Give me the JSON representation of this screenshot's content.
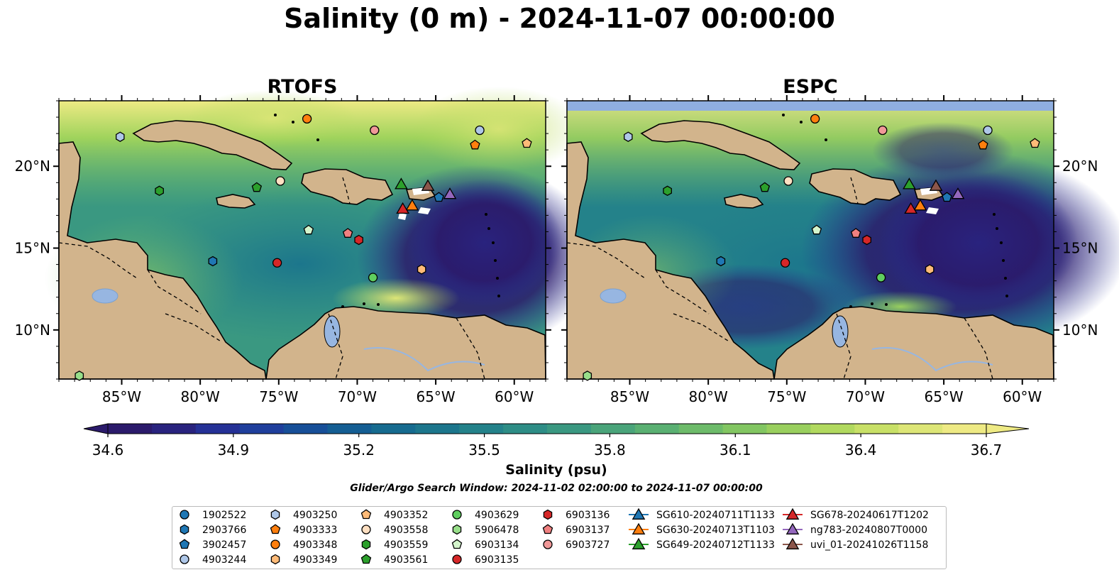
{
  "figure": {
    "title": "Salinity (0 m) - 2024-11-07 00:00:00",
    "search_window": "Glider/Argo Search Window: 2024-11-02 02:00:00 to 2024-11-07 00:00:00"
  },
  "chart_data": [
    {
      "type": "heatmap",
      "title": "RTOFS",
      "variable": "Salinity (0 m)",
      "x_ticks": [
        "85°W",
        "80°W",
        "75°W",
        "70°W",
        "65°W",
        "60°W"
      ],
      "y_ticks": [
        "20°N",
        "15°N",
        "10°N"
      ],
      "xlim": [
        -89,
        -58
      ],
      "ylim": [
        7,
        24
      ],
      "no_data_band": false
    },
    {
      "type": "heatmap",
      "title": "ESPC",
      "variable": "Salinity (0 m)",
      "x_ticks": [
        "85°W",
        "80°W",
        "75°W",
        "70°W",
        "65°W",
        "60°W"
      ],
      "y_ticks": [
        "20°N",
        "15°N",
        "10°N"
      ],
      "xlim": [
        -89,
        -58
      ],
      "ylim": [
        7,
        24
      ],
      "no_data_band": true
    }
  ],
  "colorbar": {
    "label": "Salinity (psu)",
    "min": 34.6,
    "max": 36.7,
    "ticks": [
      "34.6",
      "34.9",
      "35.2",
      "35.5",
      "35.8",
      "36.1",
      "36.4",
      "36.7"
    ],
    "colors": [
      "#2b1a6b",
      "#29237e",
      "#253196",
      "#1f3f9c",
      "#174f98",
      "#145e93",
      "#166b8f",
      "#1c768c",
      "#24828a",
      "#2e8d86",
      "#3a9881",
      "#4aa47a",
      "#5ab072",
      "#6dbb6a",
      "#82c662",
      "#99cf5e",
      "#b1d95f",
      "#c8e067",
      "#dde677",
      "#eeea84"
    ]
  },
  "colors": {
    "land": "#d2b48c",
    "lakes": "#97b6e1",
    "no_data": "#8faee0"
  },
  "platforms": [
    {
      "id": "1902522",
      "marker": "circle",
      "color": "#1f77b4",
      "lon": null,
      "lat": null
    },
    {
      "id": "2903766",
      "marker": "hexagon",
      "color": "#1f77b4",
      "lon": -79.2,
      "lat": 14.2
    },
    {
      "id": "3902457",
      "marker": "pentagon",
      "color": "#1f77b4",
      "lon": -64.8,
      "lat": 18.1
    },
    {
      "id": "4903244",
      "marker": "circle",
      "color": "#aec7e8",
      "lon": -62.2,
      "lat": 22.2
    },
    {
      "id": "4903250",
      "marker": "hexagon",
      "color": "#aec7e8",
      "lon": -85.1,
      "lat": 21.8
    },
    {
      "id": "4903333",
      "marker": "pentagon",
      "color": "#ff7f0e",
      "lon": -62.5,
      "lat": 21.3
    },
    {
      "id": "4903348",
      "marker": "circle",
      "color": "#ff7f0e",
      "lon": -73.2,
      "lat": 22.9
    },
    {
      "id": "4903349",
      "marker": "hexagon",
      "color": "#ffbb78",
      "lon": -65.9,
      "lat": 13.7
    },
    {
      "id": "4903352",
      "marker": "pentagon",
      "color": "#ffbb78",
      "lon": -59.2,
      "lat": 21.4
    },
    {
      "id": "4903558",
      "marker": "circle",
      "color": "#ffe0c2",
      "lon": -74.9,
      "lat": 19.1
    },
    {
      "id": "4903559",
      "marker": "hexagon",
      "color": "#2ca02c",
      "lon": -82.6,
      "lat": 18.5
    },
    {
      "id": "4903561",
      "marker": "pentagon",
      "color": "#2ca02c",
      "lon": -76.4,
      "lat": 18.7
    },
    {
      "id": "4903629",
      "marker": "circle",
      "color": "#5fce5f",
      "lon": -69.0,
      "lat": 13.2
    },
    {
      "id": "5906478",
      "marker": "hexagon",
      "color": "#98df8a",
      "lon": -87.7,
      "lat": 7.2
    },
    {
      "id": "6903134",
      "marker": "pentagon",
      "color": "#d4f5cc",
      "lon": -73.1,
      "lat": 16.1
    },
    {
      "id": "6903135",
      "marker": "circle",
      "color": "#d62728",
      "lon": -75.1,
      "lat": 14.1
    },
    {
      "id": "6903136",
      "marker": "hexagon",
      "color": "#d62728",
      "lon": -69.9,
      "lat": 15.5
    },
    {
      "id": "6903137",
      "marker": "pentagon",
      "color": "#f08080",
      "lon": -70.6,
      "lat": 15.9
    },
    {
      "id": "6903727",
      "marker": "circle",
      "color": "#f09898",
      "lon": -68.9,
      "lat": 22.2
    }
  ],
  "gliders": [
    {
      "id": "SG610-20240711T1133",
      "color": "#1f77b4",
      "lon": null,
      "lat": null
    },
    {
      "id": "SG630-20240713T1103",
      "color": "#ff7f0e",
      "lon": -66.5,
      "lat": 17.6
    },
    {
      "id": "SG649-20240712T1133",
      "color": "#2ca02c",
      "lon": -67.2,
      "lat": 18.9
    },
    {
      "id": "SG678-20240617T1202",
      "color": "#d62728",
      "lon": -67.1,
      "lat": 17.4
    },
    {
      "id": "ng783-20240807T0000",
      "color": "#9467bd",
      "lon": -64.1,
      "lat": 18.3
    },
    {
      "id": "uvi_01-20241026T1158",
      "color": "#8c564b",
      "lon": -65.5,
      "lat": 18.8
    }
  ]
}
